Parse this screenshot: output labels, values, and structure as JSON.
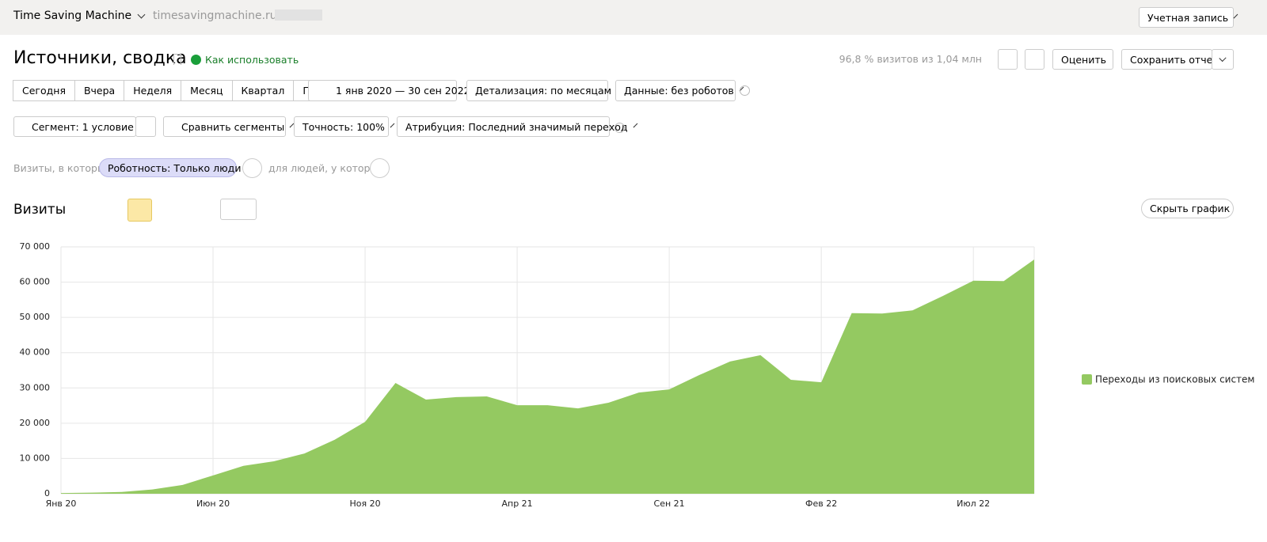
{
  "header": {
    "app_name": "Time Saving Machine",
    "site": "timesavingmachine.ru",
    "account": "Учетная запись"
  },
  "report": {
    "title": "Источники, сводка",
    "how_to": "Как использовать",
    "visits_summary": "96,8 % визитов из 1,04 млн",
    "rate": "Оценить",
    "save": "Сохранить отчет"
  },
  "toolbar": {
    "periods": [
      "Сегодня",
      "Вчера",
      "Неделя",
      "Месяц",
      "Квартал",
      "Год"
    ],
    "date_range": "1 янв 2020 — 30 сен 2022",
    "detail": "Детализация: по месяцам",
    "data_filter": "Данные: без роботов",
    "segment": "Сегмент: 1 условие",
    "compare": "Сравнить сегменты",
    "accuracy": "Точность: 100%",
    "attribution": "Атрибуция: Последний значимый переход"
  },
  "filters": {
    "visits_prefix": "Визиты, в которых",
    "tag": "Роботность: Только люди",
    "people_prefix": "для людей, у которых"
  },
  "chart_panel": {
    "label": "Визиты",
    "hide": "Скрыть график"
  },
  "chart_data": {
    "type": "area",
    "categories": [
      "Янв 20",
      null,
      null,
      null,
      null,
      "Июн 20",
      null,
      null,
      null,
      null,
      "Ноя 20",
      null,
      null,
      null,
      null,
      "Апр 21",
      null,
      null,
      null,
      null,
      "Сен 21",
      null,
      null,
      null,
      null,
      "Фев 22",
      null,
      null,
      null,
      null,
      "Июл 22",
      null,
      null
    ],
    "series": [
      {
        "name": "Переходы из поисковых систем",
        "color": "#94c961",
        "values": [
          200,
          300,
          500,
          1200,
          2500,
          5200,
          7900,
          9200,
          11400,
          15300,
          20400,
          31400,
          26700,
          27400,
          27600,
          25100,
          25100,
          24200,
          25800,
          28700,
          29600,
          33700,
          37500,
          39300,
          32300,
          31600,
          51200,
          51100,
          52000,
          56100,
          60400,
          60300,
          66400
        ]
      }
    ],
    "ylim": [
      0,
      70000
    ],
    "yticks": [
      0,
      {
        "value": 10000,
        "label": "10 000"
      },
      {
        "value": 20000,
        "label": "20 000"
      },
      {
        "value": 30000,
        "label": "30 000"
      },
      {
        "value": 40000,
        "label": "40 000"
      },
      {
        "value": 50000,
        "label": "50 000"
      },
      {
        "value": 60000,
        "label": "60 000"
      },
      {
        "value": 70000,
        "label": "70 000"
      }
    ],
    "grid": true
  }
}
